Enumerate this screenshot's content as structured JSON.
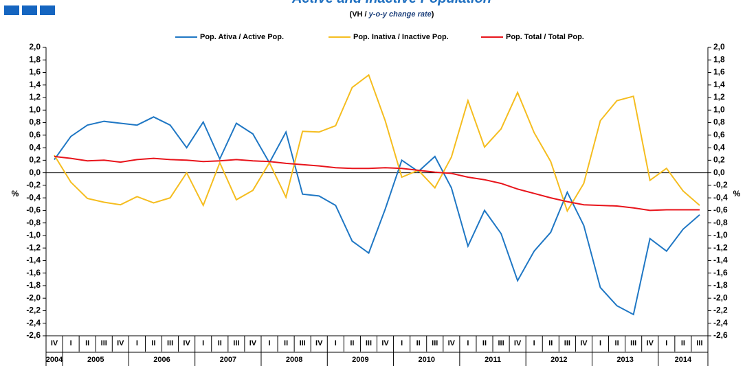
{
  "chart_data": {
    "type": "line",
    "title": "Active and Inactive Population",
    "subtitle": [
      "(VH / ",
      "y-o-y change rate",
      ")"
    ],
    "y_label": "%",
    "y2_label": "%",
    "categories": [
      "IV",
      "I",
      "II",
      "III",
      "IV",
      "I",
      "II",
      "III",
      "IV",
      "I",
      "II",
      "III",
      "IV",
      "I",
      "II",
      "III",
      "IV",
      "I",
      "II",
      "III",
      "IV",
      "I",
      "II",
      "III",
      "IV",
      "I",
      "II",
      "III",
      "IV",
      "I",
      "II",
      "III",
      "IV",
      "I",
      "II",
      "III",
      "IV",
      "I",
      "II",
      "III"
    ],
    "years": [
      "2004",
      "2005",
      "2006",
      "2007",
      "2008",
      "2009",
      "2010",
      "2011",
      "2012",
      "2013",
      "2014"
    ],
    "series": [
      {
        "name": "Pop. Ativa / Active Pop.",
        "color": "#1f77c4",
        "values": [
          0.21,
          0.58,
          0.76,
          0.82,
          0.79,
          0.76,
          0.89,
          0.76,
          0.4,
          0.81,
          0.22,
          0.79,
          0.62,
          0.16,
          0.65,
          -0.34,
          -0.37,
          -0.52,
          -1.09,
          -1.28,
          -0.58,
          0.2,
          0.02,
          0.26,
          -0.24,
          -1.17,
          -0.6,
          -0.97,
          -1.72,
          -1.25,
          -0.95,
          -0.31,
          -0.84,
          -1.83,
          -2.12,
          -2.26,
          -1.05,
          -1.25,
          -0.9,
          -0.67
        ]
      },
      {
        "name": "Pop. Inativa / Inactive Pop.",
        "color": "#f5bd1f",
        "values": [
          0.28,
          -0.15,
          -0.41,
          -0.47,
          -0.51,
          -0.38,
          -0.48,
          -0.4,
          0.0,
          -0.52,
          0.16,
          -0.43,
          -0.28,
          0.16,
          -0.39,
          0.66,
          0.65,
          0.75,
          1.36,
          1.56,
          0.83,
          -0.07,
          0.04,
          -0.24,
          0.25,
          1.15,
          0.41,
          0.7,
          1.28,
          0.64,
          0.18,
          -0.61,
          -0.17,
          0.83,
          1.15,
          1.22,
          -0.12,
          0.07,
          -0.29,
          -0.52
        ]
      },
      {
        "name": "Pop. Total / Total Pop.",
        "color": "#e8141b",
        "values": [
          0.26,
          0.23,
          0.19,
          0.2,
          0.17,
          0.21,
          0.23,
          0.21,
          0.2,
          0.18,
          0.19,
          0.21,
          0.19,
          0.18,
          0.15,
          0.13,
          0.11,
          0.08,
          0.07,
          0.07,
          0.08,
          0.07,
          0.04,
          0.01,
          -0.01,
          -0.07,
          -0.11,
          -0.17,
          -0.26,
          -0.33,
          -0.4,
          -0.46,
          -0.51,
          -0.52,
          -0.53,
          -0.56,
          -0.6,
          -0.59,
          -0.59,
          -0.59
        ]
      }
    ],
    "ylim": [
      -2.6,
      2.0
    ],
    "yticks": [
      {
        "value": -2.6,
        "label": "-2,6"
      },
      {
        "value": -2.4,
        "label": "-2,4"
      },
      {
        "value": -2.2,
        "label": "-2,2"
      },
      {
        "value": -2,
        "label": "-2,0"
      },
      {
        "value": -1.8,
        "label": "-1,8"
      },
      {
        "value": -1.6,
        "label": "-1,6"
      },
      {
        "value": -1.4,
        "label": "-1,4"
      },
      {
        "value": -1.2,
        "label": "-1,2"
      },
      {
        "value": -1,
        "label": "-1,0"
      },
      {
        "value": -0.8,
        "label": "-0,8"
      },
      {
        "value": -0.6,
        "label": "-0,6"
      },
      {
        "value": -0.4,
        "label": "-0,4"
      },
      {
        "value": -0.2,
        "label": "-0,2"
      },
      {
        "value": 0,
        "label": "0,0"
      },
      {
        "value": 0.2,
        "label": "0,2"
      },
      {
        "value": 0.4,
        "label": "0,4"
      },
      {
        "value": 0.6,
        "label": "0,6"
      },
      {
        "value": 0.8,
        "label": "0,8"
      },
      {
        "value": 1,
        "label": "1,0"
      },
      {
        "value": 1.2,
        "label": "1,2"
      },
      {
        "value": 1.4,
        "label": "1,4"
      },
      {
        "value": 1.6,
        "label": "1,6"
      },
      {
        "value": 1.8,
        "label": "1,8"
      },
      {
        "value": 2,
        "label": "2,0"
      }
    ],
    "y2lim": [
      -2.6,
      2.0
    ],
    "y2ticks": [
      {
        "value": -2.6,
        "label": "-2,6"
      },
      {
        "value": -2.4,
        "label": "-2,4"
      },
      {
        "value": -2.2,
        "label": "-2,2"
      },
      {
        "value": -2,
        "label": "-2,0"
      },
      {
        "value": -1.8,
        "label": "-1,8"
      },
      {
        "value": -1.6,
        "label": "-1,6"
      },
      {
        "value": -1.4,
        "label": "-1,4"
      },
      {
        "value": -1.2,
        "label": "-1,2"
      },
      {
        "value": -1,
        "label": "-1,0"
      },
      {
        "value": -0.8,
        "label": "-0,8"
      },
      {
        "value": -0.6,
        "label": "-0,6"
      },
      {
        "value": -0.4,
        "label": "-0,4"
      },
      {
        "value": -0.2,
        "label": "-0,2"
      },
      {
        "value": 0,
        "label": "0,0"
      },
      {
        "value": 0.2,
        "label": "0,2"
      },
      {
        "value": 0.4,
        "label": "0,4"
      },
      {
        "value": 0.6,
        "label": "0,6"
      },
      {
        "value": 0.8,
        "label": "0,8"
      },
      {
        "value": 1,
        "label": "1,0"
      },
      {
        "value": 1.2,
        "label": "1,2"
      },
      {
        "value": 1.4,
        "label": "1,4"
      },
      {
        "value": 1.6,
        "label": "1,6"
      },
      {
        "value": 1.8,
        "label": "1,8"
      },
      {
        "value": 2,
        "label": "2,0"
      }
    ],
    "grid": false,
    "legend": "top"
  }
}
